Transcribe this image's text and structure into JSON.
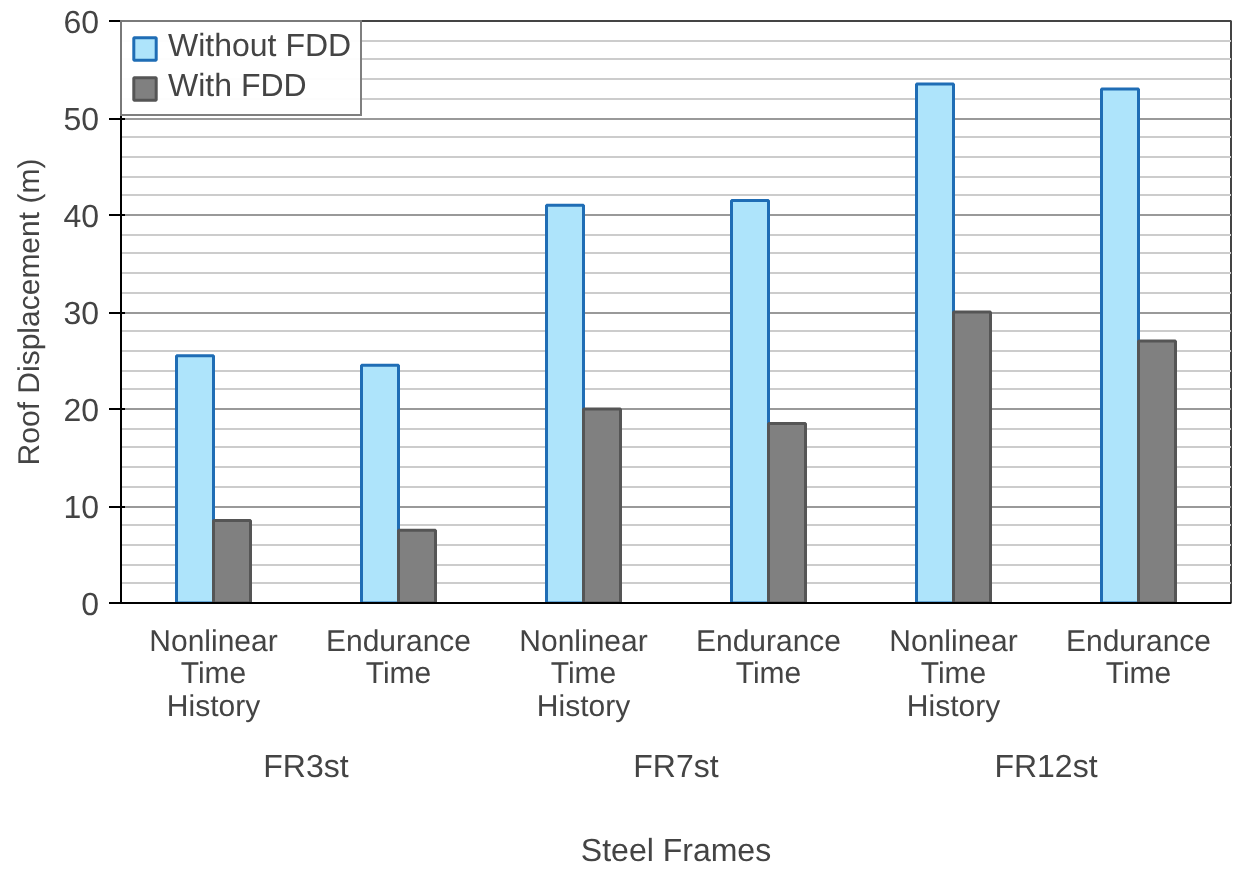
{
  "chart_data": {
    "type": "bar",
    "xlabel": "Steel Frames",
    "ylabel": "Roof Displacement (m)",
    "categories": [
      "Nonlinear Time History",
      "Endurance Time",
      "Nonlinear Time History",
      "Endurance Time",
      "Nonlinear Time History",
      "Endurance Time"
    ],
    "series": [
      {
        "name": "Without FDD",
        "color": "#aee4fb",
        "values": [
          25.5,
          24.5,
          41,
          41.5,
          53.5,
          53
        ]
      },
      {
        "name": "With FDD",
        "color": "#808080",
        "values": [
          8.5,
          7.5,
          20,
          18.5,
          30,
          27
        ]
      }
    ],
    "annotations": [
      "FR3st",
      "FR7st",
      "FR12st"
    ],
    "ylim": [
      0,
      60
    ],
    "yticks": [
      0,
      10,
      20,
      30,
      40,
      50,
      60
    ],
    "grid": "y",
    "legend": "top left"
  }
}
